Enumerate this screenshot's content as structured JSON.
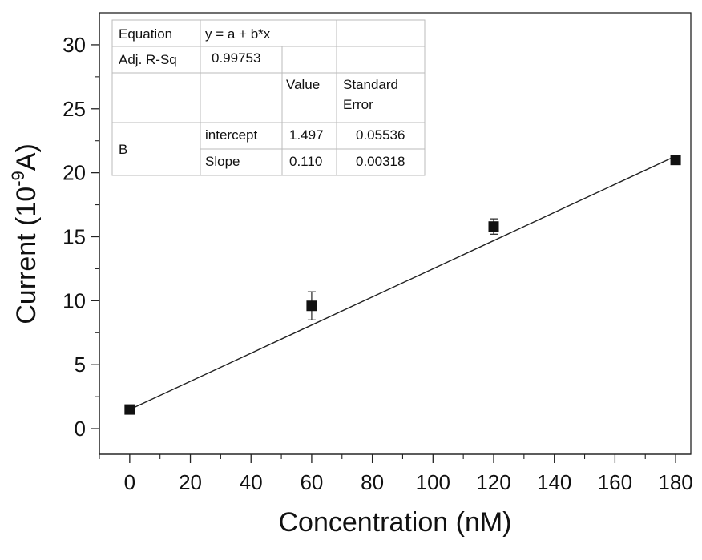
{
  "chart_data": {
    "type": "scatter",
    "xlabel": "Concentration (nM)",
    "ylabel": "Current (10-9A)",
    "ylabel_parts": {
      "main": "Current (10",
      "sup": "-9",
      "tail": "A)"
    },
    "xlim": [
      -10,
      185
    ],
    "ylim": [
      -2,
      32.5
    ],
    "xticks": [
      0,
      20,
      40,
      60,
      80,
      100,
      120,
      140,
      160,
      180
    ],
    "yticks": [
      0,
      5,
      10,
      15,
      20,
      25,
      30
    ],
    "series": [
      {
        "x": [
          0,
          60,
          120,
          180
        ],
        "y": [
          1.5,
          9.6,
          15.8,
          21.0
        ],
        "error": [
          0.15,
          1.1,
          0.6,
          0.25
        ]
      }
    ],
    "fit_line": {
      "x": [
        0,
        180
      ],
      "y": [
        1.497,
        21.297
      ]
    },
    "fit_table": {
      "equation_label": "Equation",
      "equation": "y = a + b*x",
      "r2_label": "Adj. R-Sq",
      "r2_value": "0.99753",
      "col_value": "Value",
      "col_error_1": "Standard",
      "col_error_2": "Error",
      "row_group": "B",
      "intercept_label": "intercept",
      "intercept_value": "1.497",
      "intercept_error": "0.05536",
      "slope_label": "Slope",
      "slope_value": "0.110",
      "slope_error": "0.00318"
    },
    "grid": false
  }
}
